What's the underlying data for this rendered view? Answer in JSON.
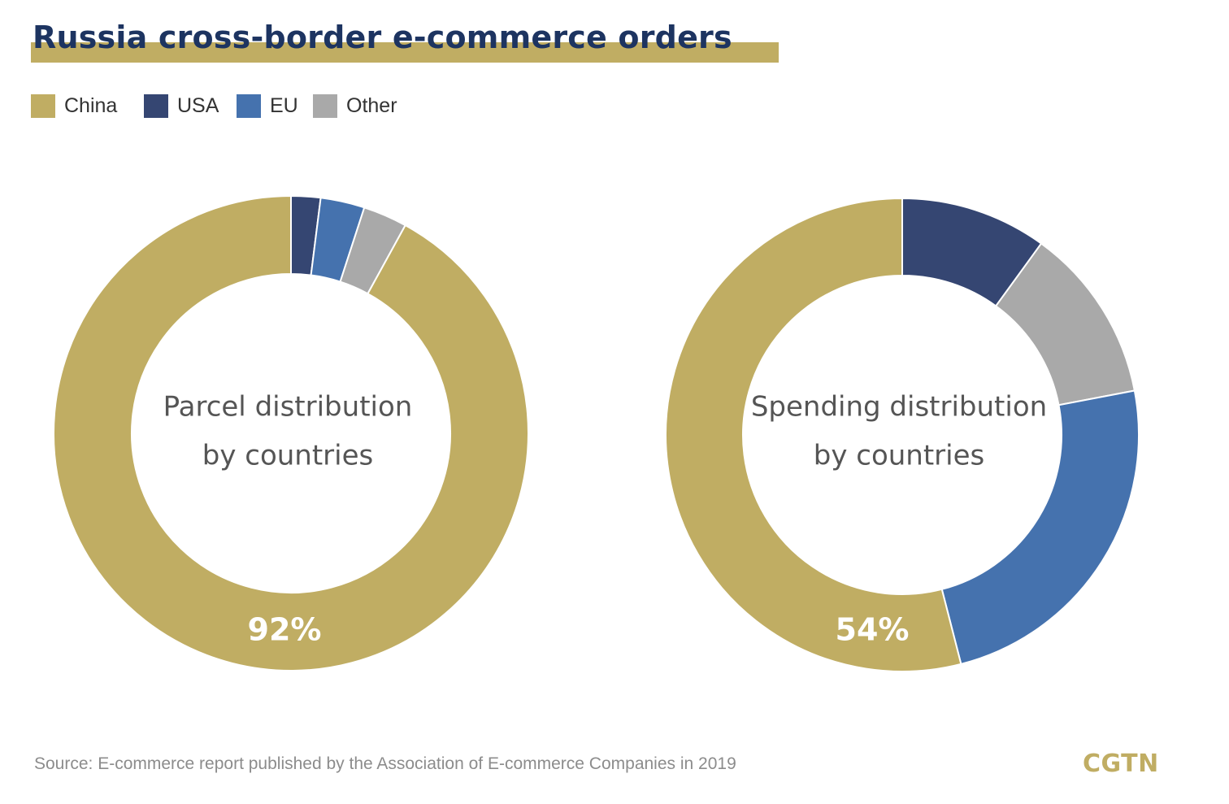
{
  "title": "Russia cross-border e-commerce orders",
  "colors": {
    "China": "#c0ad63",
    "USA": "#354672",
    "EU": "#4572ae",
    "Other": "#a9a9a9",
    "title": "#1d3461",
    "accent_bar": "#c0ad63"
  },
  "legend": [
    "China",
    "USA",
    "EU",
    "Other"
  ],
  "source": "Source: E-commerce report published by the Association of E-commerce Companies in 2019",
  "logo": "CGTN",
  "chart_data": [
    {
      "type": "pie",
      "subtype": "donut",
      "center_label": [
        "Parcel distribution",
        "by countries"
      ],
      "highlight_label": "92%",
      "categories": [
        "China",
        "USA",
        "EU",
        "Other"
      ],
      "values": [
        92,
        2,
        3,
        3
      ],
      "start": "top",
      "direction": "clockwise",
      "first_drawn": "USA"
    },
    {
      "type": "pie",
      "subtype": "donut",
      "center_label": [
        "Spending distribution",
        "by countries"
      ],
      "highlight_label": "54%",
      "categories": [
        "China",
        "USA",
        "Other",
        "EU"
      ],
      "values": [
        54,
        10,
        12,
        24
      ],
      "start": "top",
      "direction": "clockwise",
      "first_drawn": "USA"
    }
  ]
}
